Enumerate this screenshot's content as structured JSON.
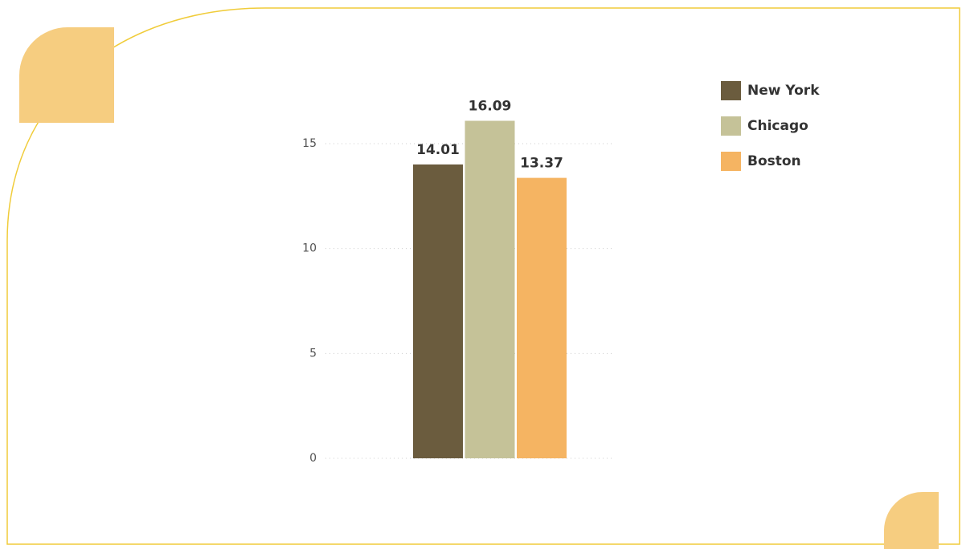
{
  "chart_data": {
    "type": "bar",
    "series": [
      {
        "name": "New York",
        "color": "#6b5c3e",
        "values": [
          14.01
        ]
      },
      {
        "name": "Chicago",
        "color": "#c5c298",
        "values": [
          16.09
        ]
      },
      {
        "name": "Boston",
        "color": "#f5b462",
        "values": [
          13.37
        ]
      }
    ],
    "ylim": [
      0,
      17
    ],
    "yticks": [
      0,
      5,
      10,
      15
    ],
    "grid": true,
    "legend": "right"
  }
}
